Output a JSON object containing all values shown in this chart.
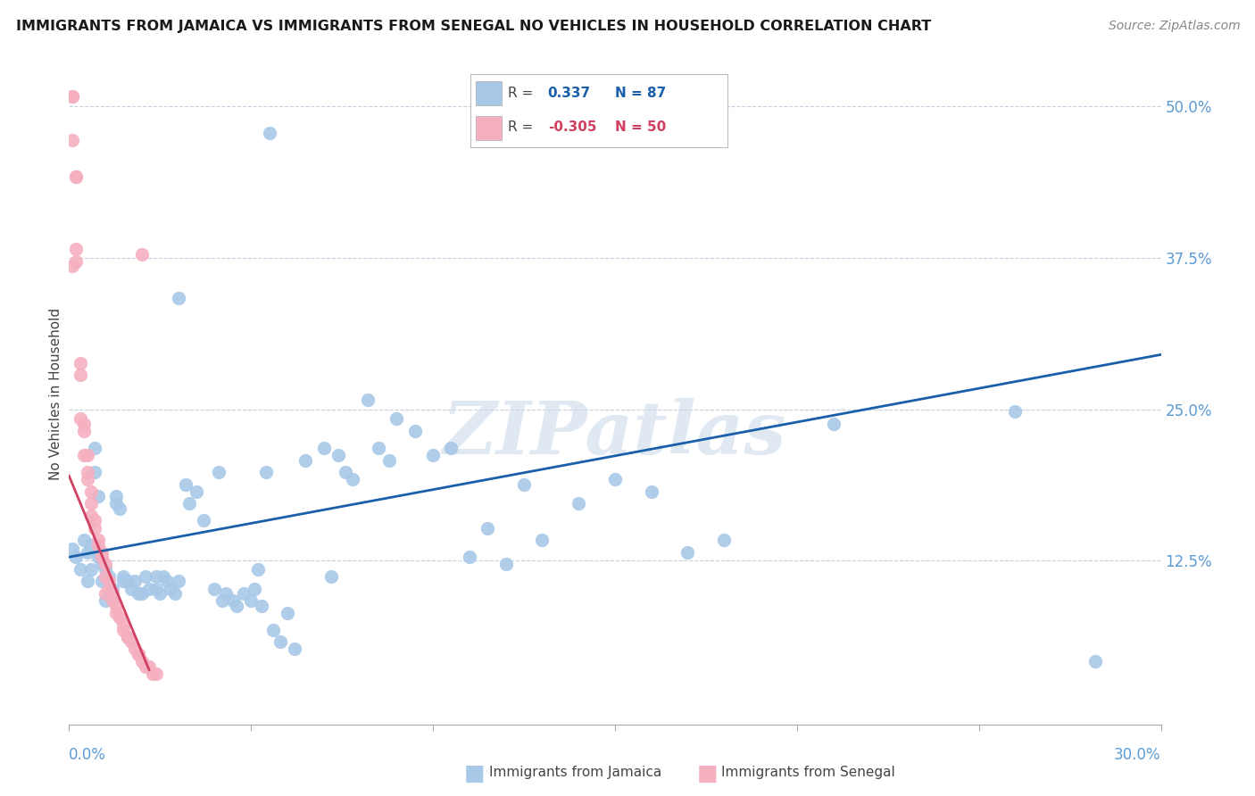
{
  "title": "IMMIGRANTS FROM JAMAICA VS IMMIGRANTS FROM SENEGAL NO VEHICLES IN HOUSEHOLD CORRELATION CHART",
  "source": "Source: ZipAtlas.com",
  "ylabel": "No Vehicles in Household",
  "yticks": [
    0.0,
    0.125,
    0.25,
    0.375,
    0.5
  ],
  "ytick_labels": [
    "",
    "12.5%",
    "25.0%",
    "37.5%",
    "50.0%"
  ],
  "xlim": [
    0.0,
    0.3
  ],
  "ylim": [
    -0.01,
    0.535
  ],
  "jamaica_color": "#a8c8e8",
  "senegal_color": "#f5b0c0",
  "jamaica_line_color": "#1a5faa",
  "senegal_line_color": "#d04060",
  "watermark": "ZIPatlas",
  "jamaica_line": [
    [
      0.0,
      0.128
    ],
    [
      0.3,
      0.295
    ]
  ],
  "senegal_line": [
    [
      0.0,
      0.195
    ],
    [
      0.022,
      0.035
    ]
  ],
  "jamaica_scatter": [
    [
      0.001,
      0.135
    ],
    [
      0.002,
      0.128
    ],
    [
      0.003,
      0.118
    ],
    [
      0.004,
      0.142
    ],
    [
      0.005,
      0.108
    ],
    [
      0.005,
      0.132
    ],
    [
      0.006,
      0.138
    ],
    [
      0.006,
      0.118
    ],
    [
      0.007,
      0.218
    ],
    [
      0.007,
      0.198
    ],
    [
      0.008,
      0.178
    ],
    [
      0.008,
      0.128
    ],
    [
      0.009,
      0.122
    ],
    [
      0.009,
      0.108
    ],
    [
      0.01,
      0.118
    ],
    [
      0.01,
      0.092
    ],
    [
      0.011,
      0.112
    ],
    [
      0.011,
      0.098
    ],
    [
      0.012,
      0.102
    ],
    [
      0.012,
      0.092
    ],
    [
      0.013,
      0.178
    ],
    [
      0.013,
      0.172
    ],
    [
      0.014,
      0.168
    ],
    [
      0.015,
      0.112
    ],
    [
      0.015,
      0.108
    ],
    [
      0.016,
      0.108
    ],
    [
      0.017,
      0.102
    ],
    [
      0.018,
      0.108
    ],
    [
      0.019,
      0.098
    ],
    [
      0.02,
      0.098
    ],
    [
      0.021,
      0.112
    ],
    [
      0.022,
      0.102
    ],
    [
      0.024,
      0.112
    ],
    [
      0.024,
      0.102
    ],
    [
      0.025,
      0.098
    ],
    [
      0.026,
      0.112
    ],
    [
      0.027,
      0.108
    ],
    [
      0.028,
      0.102
    ],
    [
      0.029,
      0.098
    ],
    [
      0.03,
      0.108
    ],
    [
      0.032,
      0.188
    ],
    [
      0.033,
      0.172
    ],
    [
      0.035,
      0.182
    ],
    [
      0.037,
      0.158
    ],
    [
      0.04,
      0.102
    ],
    [
      0.041,
      0.198
    ],
    [
      0.042,
      0.092
    ],
    [
      0.043,
      0.098
    ],
    [
      0.045,
      0.092
    ],
    [
      0.046,
      0.088
    ],
    [
      0.048,
      0.098
    ],
    [
      0.05,
      0.092
    ],
    [
      0.051,
      0.102
    ],
    [
      0.052,
      0.118
    ],
    [
      0.053,
      0.088
    ],
    [
      0.054,
      0.198
    ],
    [
      0.056,
      0.068
    ],
    [
      0.058,
      0.058
    ],
    [
      0.06,
      0.082
    ],
    [
      0.062,
      0.052
    ],
    [
      0.065,
      0.208
    ],
    [
      0.07,
      0.218
    ],
    [
      0.072,
      0.112
    ],
    [
      0.074,
      0.212
    ],
    [
      0.076,
      0.198
    ],
    [
      0.078,
      0.192
    ],
    [
      0.082,
      0.258
    ],
    [
      0.085,
      0.218
    ],
    [
      0.088,
      0.208
    ],
    [
      0.09,
      0.242
    ],
    [
      0.095,
      0.232
    ],
    [
      0.1,
      0.212
    ],
    [
      0.105,
      0.218
    ],
    [
      0.11,
      0.128
    ],
    [
      0.115,
      0.152
    ],
    [
      0.12,
      0.122
    ],
    [
      0.125,
      0.188
    ],
    [
      0.13,
      0.142
    ],
    [
      0.14,
      0.172
    ],
    [
      0.15,
      0.192
    ],
    [
      0.16,
      0.182
    ],
    [
      0.17,
      0.132
    ],
    [
      0.18,
      0.142
    ],
    [
      0.21,
      0.238
    ],
    [
      0.26,
      0.248
    ],
    [
      0.282,
      0.042
    ],
    [
      0.055,
      0.478
    ],
    [
      0.03,
      0.342
    ]
  ],
  "senegal_scatter": [
    [
      0.001,
      0.508
    ],
    [
      0.001,
      0.472
    ],
    [
      0.002,
      0.442
    ],
    [
      0.002,
      0.382
    ],
    [
      0.002,
      0.372
    ],
    [
      0.003,
      0.288
    ],
    [
      0.003,
      0.278
    ],
    [
      0.003,
      0.242
    ],
    [
      0.004,
      0.238
    ],
    [
      0.004,
      0.232
    ],
    [
      0.004,
      0.212
    ],
    [
      0.005,
      0.212
    ],
    [
      0.005,
      0.198
    ],
    [
      0.005,
      0.192
    ],
    [
      0.006,
      0.182
    ],
    [
      0.006,
      0.172
    ],
    [
      0.006,
      0.162
    ],
    [
      0.007,
      0.158
    ],
    [
      0.007,
      0.152
    ],
    [
      0.008,
      0.142
    ],
    [
      0.008,
      0.138
    ],
    [
      0.009,
      0.132
    ],
    [
      0.009,
      0.128
    ],
    [
      0.01,
      0.122
    ],
    [
      0.01,
      0.112
    ],
    [
      0.011,
      0.108
    ],
    [
      0.011,
      0.102
    ],
    [
      0.012,
      0.098
    ],
    [
      0.012,
      0.092
    ],
    [
      0.013,
      0.088
    ],
    [
      0.013,
      0.082
    ],
    [
      0.014,
      0.078
    ],
    [
      0.015,
      0.072
    ],
    [
      0.015,
      0.068
    ],
    [
      0.016,
      0.062
    ],
    [
      0.016,
      0.062
    ],
    [
      0.017,
      0.058
    ],
    [
      0.018,
      0.052
    ],
    [
      0.019,
      0.048
    ],
    [
      0.019,
      0.048
    ],
    [
      0.02,
      0.042
    ],
    [
      0.02,
      0.378
    ],
    [
      0.021,
      0.038
    ],
    [
      0.022,
      0.038
    ],
    [
      0.023,
      0.032
    ],
    [
      0.024,
      0.032
    ],
    [
      0.001,
      0.508
    ],
    [
      0.002,
      0.442
    ],
    [
      0.01,
      0.098
    ],
    [
      0.001,
      0.368
    ]
  ]
}
